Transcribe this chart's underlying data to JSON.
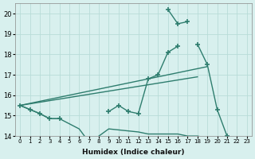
{
  "xlabel": "Humidex (Indice chaleur)",
  "x_values": [
    0,
    1,
    2,
    3,
    4,
    5,
    6,
    7,
    8,
    9,
    10,
    11,
    12,
    13,
    14,
    15,
    16,
    17,
    18,
    19,
    20,
    21,
    22,
    23
  ],
  "line_spiky_high": [
    null,
    null,
    null,
    null,
    null,
    null,
    null,
    null,
    null,
    null,
    null,
    null,
    null,
    null,
    null,
    20.2,
    19.5,
    19.6,
    null,
    null,
    null,
    null,
    null,
    null
  ],
  "line_spiky_mid": [
    15.5,
    15.3,
    15.1,
    14.85,
    14.85,
    null,
    null,
    null,
    null,
    15.2,
    15.5,
    15.2,
    15.1,
    16.8,
    17.0,
    18.1,
    18.4,
    null,
    18.5,
    17.5,
    15.3,
    14.0,
    13.8,
    null
  ],
  "line_straight_upper": [
    [
      0,
      15.5
    ],
    [
      19,
      17.4
    ]
  ],
  "line_straight_lower": [
    [
      0,
      15.5
    ],
    [
      18,
      16.9
    ]
  ],
  "line_low": [
    15.5,
    15.3,
    15.1,
    14.85,
    14.85,
    14.6,
    14.35,
    13.7,
    14.0,
    14.35,
    14.3,
    14.25,
    14.2,
    14.1,
    14.1,
    14.1,
    14.1,
    14.0,
    14.0,
    13.9,
    13.85,
    13.8,
    13.8,
    13.75
  ],
  "color": "#2E7D6E",
  "bg_color": "#d8f0ee",
  "grid_color": "#b8dcd8",
  "ylim": [
    14,
    20.5
  ],
  "xlim": [
    -0.5,
    23.5
  ]
}
